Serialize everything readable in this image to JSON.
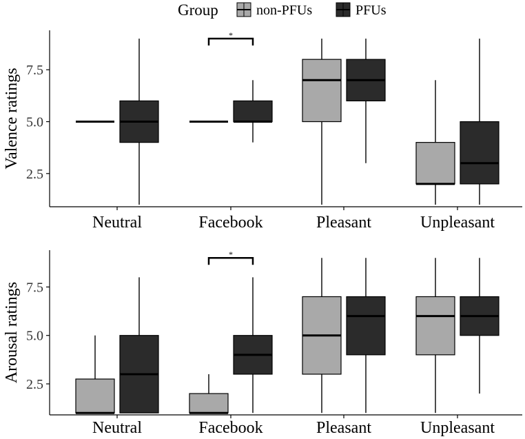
{
  "legend": {
    "title": "Group",
    "items": [
      {
        "label": "non-PFUs",
        "color": "#A9A9A9"
      },
      {
        "label": "PFUs",
        "color": "#2B2B2B"
      }
    ]
  },
  "chart_data": [
    {
      "type": "boxplot",
      "ylabel": "Valence ratings",
      "xlabel": "",
      "ylim": [
        0.9,
        9.4
      ],
      "yticks": [
        2.5,
        5.0,
        7.5
      ],
      "ytick_labels": [
        "2.5",
        "5.0",
        "7.5"
      ],
      "categories": [
        "Neutral",
        "Facebook",
        "Pleasant",
        "Unpleasant"
      ],
      "series": [
        {
          "name": "non-PFUs",
          "boxes": [
            {
              "category": "Neutral",
              "whisker_low": 5,
              "q1": 5,
              "median": 5,
              "q3": 5,
              "whisker_high": 5
            },
            {
              "category": "Facebook",
              "whisker_low": 5,
              "q1": 5,
              "median": 5,
              "q3": 5,
              "whisker_high": 5
            },
            {
              "category": "Pleasant",
              "whisker_low": 1,
              "q1": 5,
              "median": 7,
              "q3": 8,
              "whisker_high": 9
            },
            {
              "category": "Unpleasant",
              "whisker_low": 1,
              "q1": 2,
              "median": 2,
              "q3": 4,
              "whisker_high": 7
            }
          ]
        },
        {
          "name": "PFUs",
          "boxes": [
            {
              "category": "Neutral",
              "whisker_low": 1,
              "q1": 4,
              "median": 5,
              "q3": 6,
              "whisker_high": 9
            },
            {
              "category": "Facebook",
              "whisker_low": 4,
              "q1": 5,
              "median": 5,
              "q3": 6,
              "whisker_high": 7
            },
            {
              "category": "Pleasant",
              "whisker_low": 3,
              "q1": 6,
              "median": 7,
              "q3": 8,
              "whisker_high": 9
            },
            {
              "category": "Unpleasant",
              "whisker_low": 1,
              "q1": 2,
              "median": 3,
              "q3": 5,
              "whisker_high": 9
            }
          ]
        }
      ],
      "annotations": [
        {
          "category": "Facebook",
          "text": "*",
          "y": 9.0
        }
      ]
    },
    {
      "type": "boxplot",
      "ylabel": "Arousal ratings",
      "xlabel": "",
      "ylim": [
        0.9,
        9.4
      ],
      "yticks": [
        2.5,
        5.0,
        7.5
      ],
      "ytick_labels": [
        "2.5",
        "5.0",
        "7.5"
      ],
      "categories": [
        "Neutral",
        "Facebook",
        "Pleasant",
        "Unpleasant"
      ],
      "series": [
        {
          "name": "non-PFUs",
          "boxes": [
            {
              "category": "Neutral",
              "whisker_low": 1,
              "q1": 1,
              "median": 1,
              "q3": 2.75,
              "whisker_high": 5
            },
            {
              "category": "Facebook",
              "whisker_low": 1,
              "q1": 1,
              "median": 1,
              "q3": 2,
              "whisker_high": 3
            },
            {
              "category": "Pleasant",
              "whisker_low": 1,
              "q1": 3,
              "median": 5,
              "q3": 7,
              "whisker_high": 9
            },
            {
              "category": "Unpleasant",
              "whisker_low": 1,
              "q1": 4,
              "median": 6,
              "q3": 7,
              "whisker_high": 9
            }
          ]
        },
        {
          "name": "PFUs",
          "boxes": [
            {
              "category": "Neutral",
              "whisker_low": 1,
              "q1": 1,
              "median": 3,
              "q3": 5,
              "whisker_high": 8
            },
            {
              "category": "Facebook",
              "whisker_low": 1,
              "q1": 3,
              "median": 4,
              "q3": 5,
              "whisker_high": 8
            },
            {
              "category": "Pleasant",
              "whisker_low": 1,
              "q1": 4,
              "median": 6,
              "q3": 7,
              "whisker_high": 9
            },
            {
              "category": "Unpleasant",
              "whisker_low": 2,
              "q1": 5,
              "median": 6,
              "q3": 7,
              "whisker_high": 9
            }
          ]
        }
      ],
      "annotations": [
        {
          "category": "Facebook",
          "text": "*",
          "y": 9.0
        }
      ]
    }
  ]
}
